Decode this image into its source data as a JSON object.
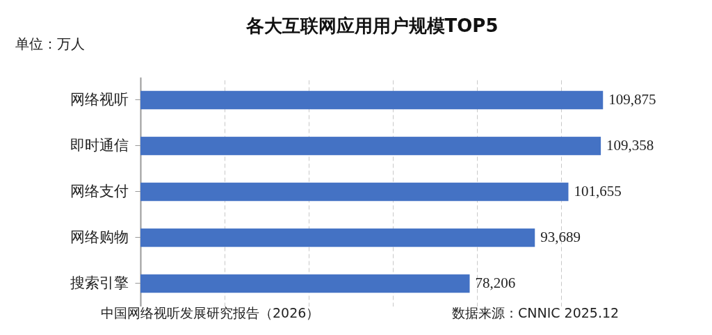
{
  "chart_data": {
    "type": "bar",
    "orientation": "horizontal",
    "title": "各大互联网应用用户规模TOP5",
    "categories": [
      "网络视听",
      "即时通信",
      "网络支付",
      "网络购物",
      "搜索引擎"
    ],
    "values": [
      109875,
      109358,
      101655,
      93689,
      78206
    ],
    "color": "#4472c4",
    "value_labels": [
      "109,875",
      "109,358",
      "101,655",
      "93,689",
      "78,206"
    ],
    "grid": "x",
    "tick_labels": "y",
    "annotations": [
      "单位：万人",
      "中国网络视听发展研究报告（2026）",
      "数据来源：CNNIC 2025.12"
    ]
  }
}
